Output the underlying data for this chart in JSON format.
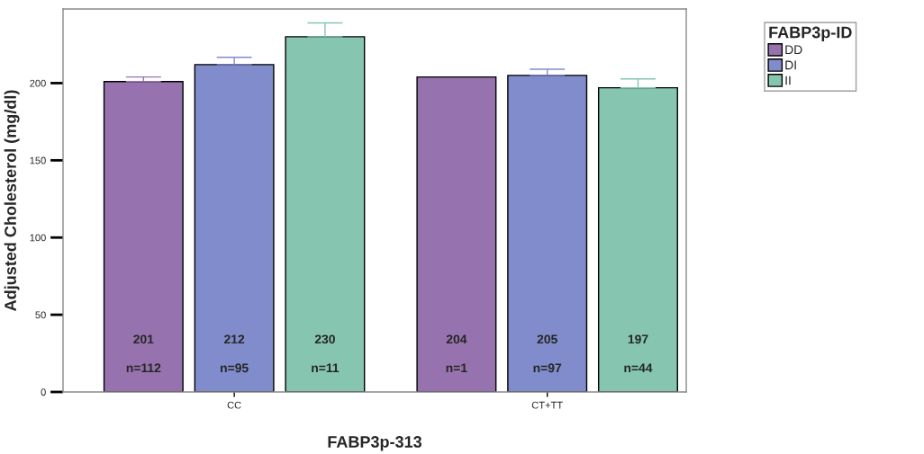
{
  "chart_data": {
    "type": "bar",
    "xlabel": "FABP3p-313",
    "ylabel": "Adjusted Cholesterol (mg/dl)",
    "legend_title": "FABP3p-ID",
    "categories": [
      "CC",
      "CT+TT"
    ],
    "series": [
      {
        "name": "DD",
        "color": "#9673ae",
        "values": [
          201,
          204
        ],
        "errors": [
          [
            201,
            204
          ],
          null
        ]
      },
      {
        "name": "DI",
        "color": "#808ccb",
        "values": [
          212,
          205
        ],
        "errors": [
          [
            212,
            216.7
          ],
          [
            205,
            209
          ]
        ]
      },
      {
        "name": "II",
        "color": "#86c6b0",
        "values": [
          230,
          197
        ],
        "errors": [
          [
            230,
            239
          ],
          [
            197,
            202.7
          ]
        ]
      }
    ],
    "ylim": [
      0,
      248
    ],
    "yticks": [
      0,
      50,
      100,
      150,
      200
    ],
    "data_labels": true,
    "legend": "top right",
    "grid": false,
    "annotations": [
      "n=112",
      "n=95",
      "n=11",
      "n=1",
      "n=97",
      "n=44"
    ]
  }
}
